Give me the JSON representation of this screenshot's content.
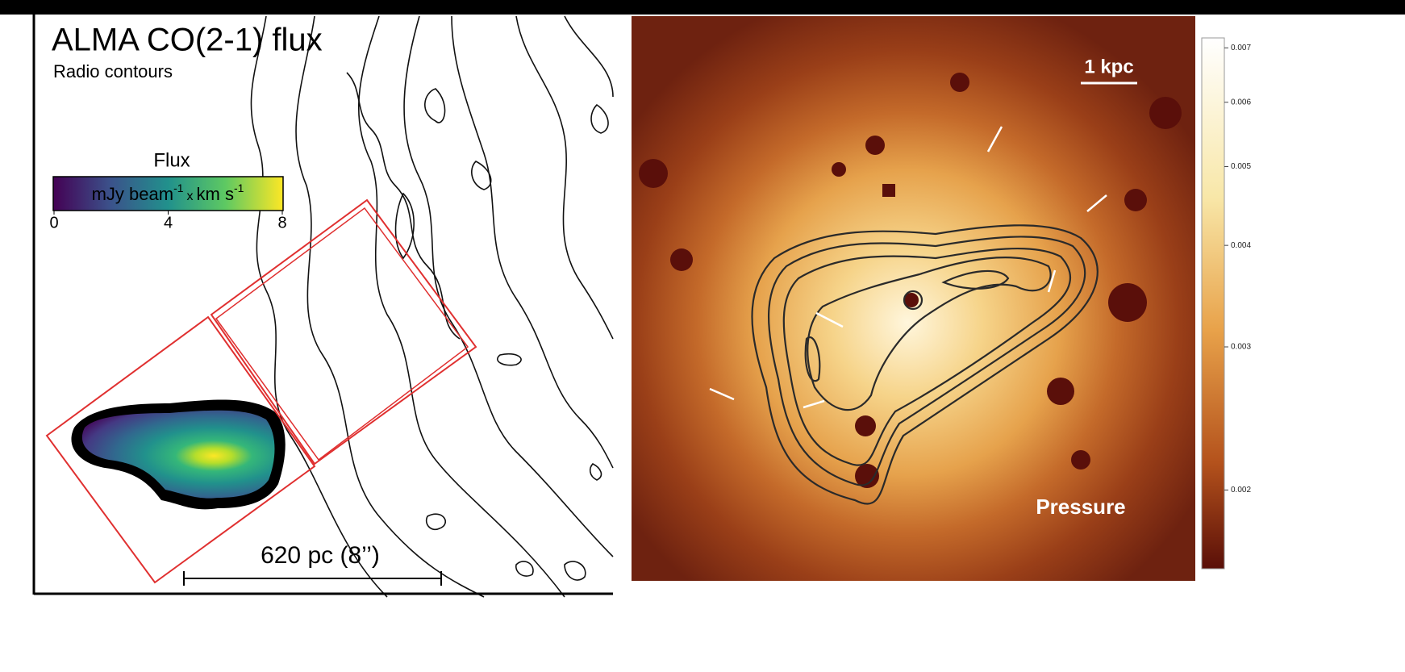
{
  "left_panel": {
    "title": "ALMA CO(2-1) flux",
    "subtitle": "Radio contours",
    "colorbar": {
      "title": "Flux",
      "label_parts": [
        "mJy beam",
        "-1",
        "x",
        "km s",
        "-1"
      ],
      "lim": [
        0,
        8
      ],
      "ticks": [
        0,
        4,
        8
      ]
    },
    "scale_bar": "620 pc (8’’)"
  },
  "right_panel": {
    "scale_bar": "1 kpc",
    "label": "Pressure",
    "colorbar": {
      "lim": [
        0.0016,
        0.0072
      ],
      "log": true,
      "ticks": [
        0.007,
        0.006,
        0.005,
        0.004,
        0.003,
        0.002
      ]
    }
  }
}
